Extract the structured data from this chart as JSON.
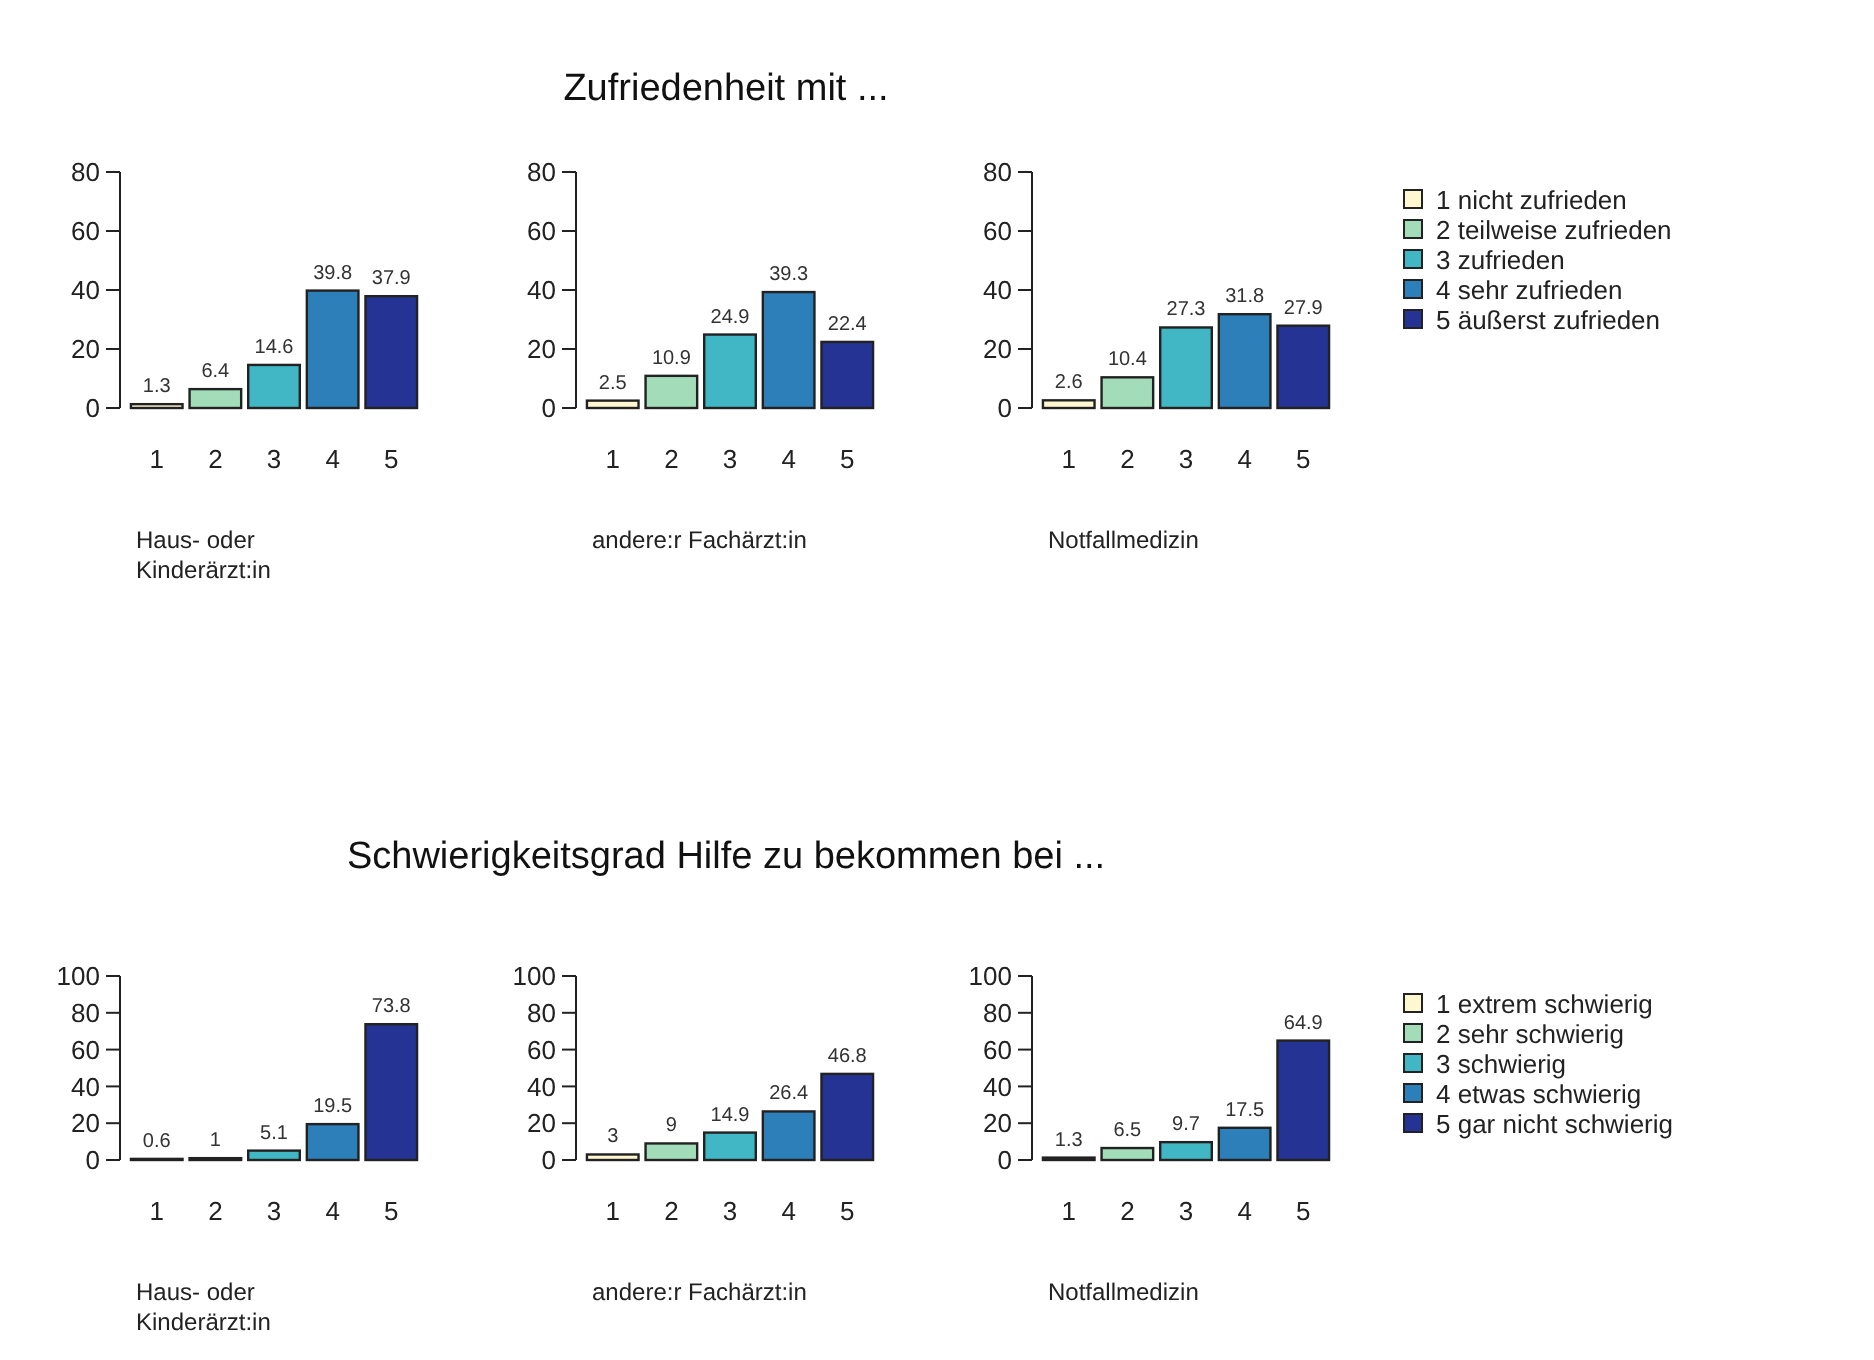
{
  "chart_data": [
    {
      "type": "bar",
      "categories": [
        "1",
        "2",
        "3",
        "4",
        "5"
      ],
      "values": [
        1.3,
        6.4,
        14.6,
        39.8,
        37.9
      ],
      "colors": [
        "#fff7d0",
        "#a3dcb8",
        "#41b6c4",
        "#2c7fb8",
        "#253494"
      ],
      "ylim": [
        0,
        80
      ],
      "yticks": [
        0,
        20,
        40,
        60,
        80
      ],
      "data_labels": true,
      "xlabel": "Haus- oder Kinderärzt:in"
    },
    {
      "type": "bar",
      "title": "Zufriedenheit mit ...",
      "categories": [
        "1",
        "2",
        "3",
        "4",
        "5"
      ],
      "values": [
        2.5,
        10.9,
        24.9,
        39.3,
        22.4
      ],
      "colors": [
        "#fff7d0",
        "#a3dcb8",
        "#41b6c4",
        "#2c7fb8",
        "#253494"
      ],
      "ylim": [
        0,
        80
      ],
      "yticks": [
        0,
        20,
        40,
        60,
        80
      ],
      "data_labels": true,
      "xlabel": "andere:r Fachärzt:in"
    },
    {
      "type": "bar",
      "categories": [
        "1",
        "2",
        "3",
        "4",
        "5"
      ],
      "series": [
        {
          "name": "1 nicht zufrieden",
          "color": "#fff7d0",
          "values": [
            2.6,
            null,
            null,
            null,
            null
          ]
        },
        {
          "name": "2 teilweise zufrieden",
          "color": "#a3dcb8",
          "values": [
            null,
            10.4,
            null,
            null,
            null
          ]
        },
        {
          "name": "3 zufrieden",
          "color": "#41b6c4",
          "values": [
            null,
            null,
            27.3,
            null,
            null
          ]
        },
        {
          "name": "4 sehr zufrieden",
          "color": "#2c7fb8",
          "values": [
            null,
            null,
            null,
            31.8,
            null
          ]
        },
        {
          "name": "5 äußerst zufrieden",
          "color": "#253494",
          "values": [
            null,
            null,
            null,
            null,
            27.9
          ]
        }
      ],
      "ylim": [
        0,
        80
      ],
      "yticks": [
        0,
        20,
        40,
        60,
        80
      ],
      "data_labels": true,
      "xlabel": "Notfallmedizin",
      "legend": "right"
    },
    {
      "type": "bar",
      "categories": [
        "1",
        "2",
        "3",
        "4",
        "5"
      ],
      "values": [
        0.6,
        1,
        5.1,
        19.5,
        73.8
      ],
      "colors": [
        "#fff7d0",
        "#a3dcb8",
        "#41b6c4",
        "#2c7fb8",
        "#253494"
      ],
      "ylim": [
        0,
        100
      ],
      "yticks": [
        0,
        20,
        40,
        60,
        80,
        100
      ],
      "data_labels": true,
      "xlabel": "Haus- oder Kinderärzt:in"
    },
    {
      "type": "bar",
      "title": "Schwierigkeitsgrad Hilfe zu bekommen bei ...",
      "categories": [
        "1",
        "2",
        "3",
        "4",
        "5"
      ],
      "values": [
        3,
        9,
        14.9,
        26.4,
        46.8
      ],
      "colors": [
        "#fff7d0",
        "#a3dcb8",
        "#41b6c4",
        "#2c7fb8",
        "#253494"
      ],
      "ylim": [
        0,
        100
      ],
      "yticks": [
        0,
        20,
        40,
        60,
        80,
        100
      ],
      "data_labels": true,
      "xlabel": "andere:r Fachärzt:in"
    },
    {
      "type": "bar",
      "categories": [
        "1",
        "2",
        "3",
        "4",
        "5"
      ],
      "series": [
        {
          "name": "1 extrem schwierig",
          "color": "#fff7d0",
          "values": [
            1.3,
            null,
            null,
            null,
            null
          ]
        },
        {
          "name": "2 sehr schwierig",
          "color": "#a3dcb8",
          "values": [
            null,
            6.5,
            null,
            null,
            null
          ]
        },
        {
          "name": "3 schwierig",
          "color": "#41b6c4",
          "values": [
            null,
            null,
            9.7,
            null,
            null
          ]
        },
        {
          "name": "4 etwas schwierig",
          "color": "#2c7fb8",
          "values": [
            null,
            null,
            null,
            17.5,
            null
          ]
        },
        {
          "name": "5 gar nicht schwierig",
          "color": "#253494",
          "values": [
            null,
            null,
            null,
            null,
            64.9
          ]
        }
      ],
      "ylim": [
        0,
        100
      ],
      "yticks": [
        0,
        20,
        40,
        60,
        80,
        100
      ],
      "data_labels": true,
      "xlabel": "Notfallmedizin",
      "legend": "right"
    }
  ]
}
